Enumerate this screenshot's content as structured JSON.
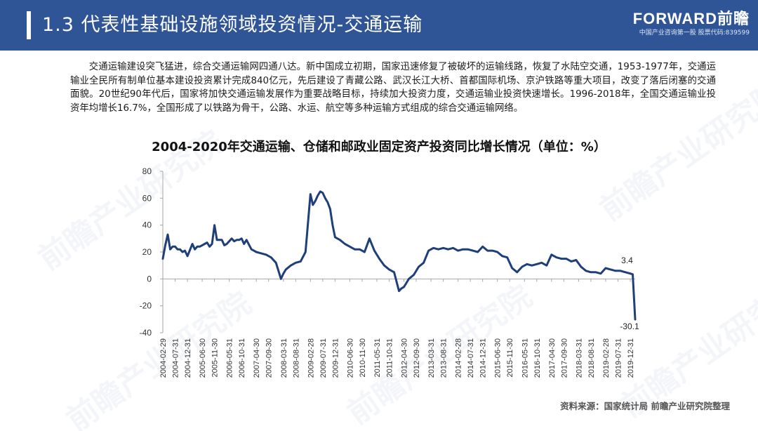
{
  "header": {
    "title": "1.3 代表性基础设施领域投资情况-交通运输",
    "brand_name": "FORWARD前瞻",
    "brand_tagline": "中国产业咨询第一股 股票代码:839599"
  },
  "intro": {
    "paragraph": "交通运输建设突飞猛进，综合交通运输网四通八达。新中国成立初期，国家迅速修复了被破坏的运输线路，恢复了水陆空交通，1953-1977年，交通运输业全民所有制单位基本建设投资累计完成840亿元，先后建设了青藏公路、武汉长江大桥、首都国际机场、京沪铁路等重大项目，改变了落后闭塞的交通面貌。20世纪90年代后，国家将加快交通运输发展作为重要战略目标，持续加大投资力度，交通运输业投资快速增长。1996-2018年，全国交通运输业投资年均增长16.7%，全国形成了以铁路为骨干，公路、水运、航空等多种运输方式组成的综合交通运输网络。"
  },
  "watermark": {
    "text": "前瞻产业研究院"
  },
  "source": {
    "text": "资料来源：国家统计局 前瞻产业研究院整理"
  },
  "colors": {
    "header": "#2f5597",
    "series": "#1f3f7a"
  },
  "chart_data": {
    "type": "line",
    "title": "2004-2020年交通运输、仓储和邮政业固定资产投资同比增长情况（单位：%）",
    "xlabel": "",
    "ylabel": "",
    "ylim": [
      -40,
      80
    ],
    "y_ticks": [
      "80",
      "60",
      "40",
      "20",
      "0",
      "-20",
      "-40"
    ],
    "grid": false,
    "x_tick_labels": [
      "2004-02-29",
      "2004-07-31",
      "2004-12-31",
      "2005-06-30",
      "2005-11-30",
      "2006-05-31",
      "2006-10-31",
      "2007-04-30",
      "2007-09-30",
      "2008-03-31",
      "2008-08-31",
      "2009-02-28",
      "2009-07-31",
      "2009-12-31",
      "2010-06-30",
      "2010-11-30",
      "2011-05-31",
      "2011-10-31",
      "2012-04-30",
      "2012-09-30",
      "2013-03-31",
      "2013-08-31",
      "2014-02-28",
      "2014-07-31",
      "2014-12-31",
      "2015-06-30",
      "2015-11-30",
      "2016-05-31",
      "2016-10-31",
      "2017-04-30",
      "2017-09-30",
      "2018-03-31",
      "2018-08-31",
      "2019-02-28",
      "2019-07-31",
      "2019-12-31"
    ],
    "annotations": [
      {
        "text": "3.4",
        "x": "2020-01",
        "y": 3.4
      },
      {
        "text": "-30.1",
        "x": "2020-02",
        "y": -30.1
      }
    ],
    "series": [
      {
        "x": [
          "2004-02",
          "2004-03",
          "2004-04",
          "2004-05",
          "2004-06",
          "2004-07",
          "2004-08",
          "2004-09",
          "2004-10",
          "2004-11",
          "2004-12",
          "2005-02",
          "2005-03",
          "2005-04",
          "2005-05",
          "2005-06",
          "2005-07",
          "2005-08",
          "2005-09",
          "2005-10",
          "2005-11",
          "2005-12",
          "2006-02",
          "2006-03",
          "2006-04",
          "2006-05",
          "2006-06",
          "2006-07",
          "2006-08",
          "2006-09",
          "2006-10",
          "2006-11",
          "2006-12",
          "2007-02",
          "2007-03",
          "2007-04",
          "2007-06",
          "2007-08",
          "2007-10",
          "2007-12",
          "2008-02",
          "2008-03",
          "2008-04",
          "2008-06",
          "2008-08",
          "2008-10",
          "2008-12",
          "2009-02",
          "2009-03",
          "2009-04",
          "2009-05",
          "2009-06",
          "2009-07",
          "2009-08",
          "2009-09",
          "2009-10",
          "2009-11",
          "2009-12",
          "2010-02",
          "2010-04",
          "2010-06",
          "2010-08",
          "2010-10",
          "2010-12",
          "2011-02",
          "2011-04",
          "2011-06",
          "2011-08",
          "2011-10",
          "2011-12",
          "2012-02",
          "2012-03",
          "2012-04",
          "2012-05",
          "2012-06",
          "2012-08",
          "2012-10",
          "2012-12",
          "2013-02",
          "2013-04",
          "2013-06",
          "2013-08",
          "2013-10",
          "2013-12",
          "2014-02",
          "2014-04",
          "2014-06",
          "2014-08",
          "2014-10",
          "2014-12",
          "2015-02",
          "2015-04",
          "2015-06",
          "2015-08",
          "2015-10",
          "2015-12",
          "2016-02",
          "2016-04",
          "2016-06",
          "2016-08",
          "2016-10",
          "2016-12",
          "2017-02",
          "2017-04",
          "2017-06",
          "2017-08",
          "2017-10",
          "2017-12",
          "2018-02",
          "2018-04",
          "2018-06",
          "2018-08",
          "2018-10",
          "2018-12",
          "2019-02",
          "2019-04",
          "2019-06",
          "2019-08",
          "2019-10",
          "2019-12",
          "2020-01",
          "2020-02"
        ],
        "values": [
          15,
          25,
          33,
          22,
          24,
          24,
          22,
          22,
          20,
          21,
          17,
          26,
          22,
          24,
          24,
          25,
          26,
          27,
          24,
          26,
          40,
          29,
          29,
          25,
          26,
          28,
          30,
          28,
          29,
          29,
          30,
          26,
          29,
          22,
          21,
          20,
          19,
          18,
          16,
          12,
          0,
          4,
          7,
          10,
          12,
          13,
          20,
          63,
          55,
          58,
          62,
          65,
          64,
          60,
          57,
          52,
          40,
          31,
          29,
          26,
          24,
          22,
          22,
          20,
          30,
          21,
          15,
          10,
          7,
          5,
          -9,
          -7,
          -6,
          -3,
          0,
          3,
          9,
          12,
          21,
          23,
          22,
          23,
          22,
          23,
          21,
          22,
          22,
          21,
          20,
          24,
          21,
          21,
          20,
          17,
          16,
          8,
          5,
          9,
          11,
          10,
          11,
          12,
          10,
          18,
          16,
          15,
          15,
          13,
          14,
          9,
          6,
          5,
          5,
          4,
          8,
          7,
          6,
          6,
          5,
          4,
          3.4,
          -30.1
        ]
      }
    ]
  }
}
